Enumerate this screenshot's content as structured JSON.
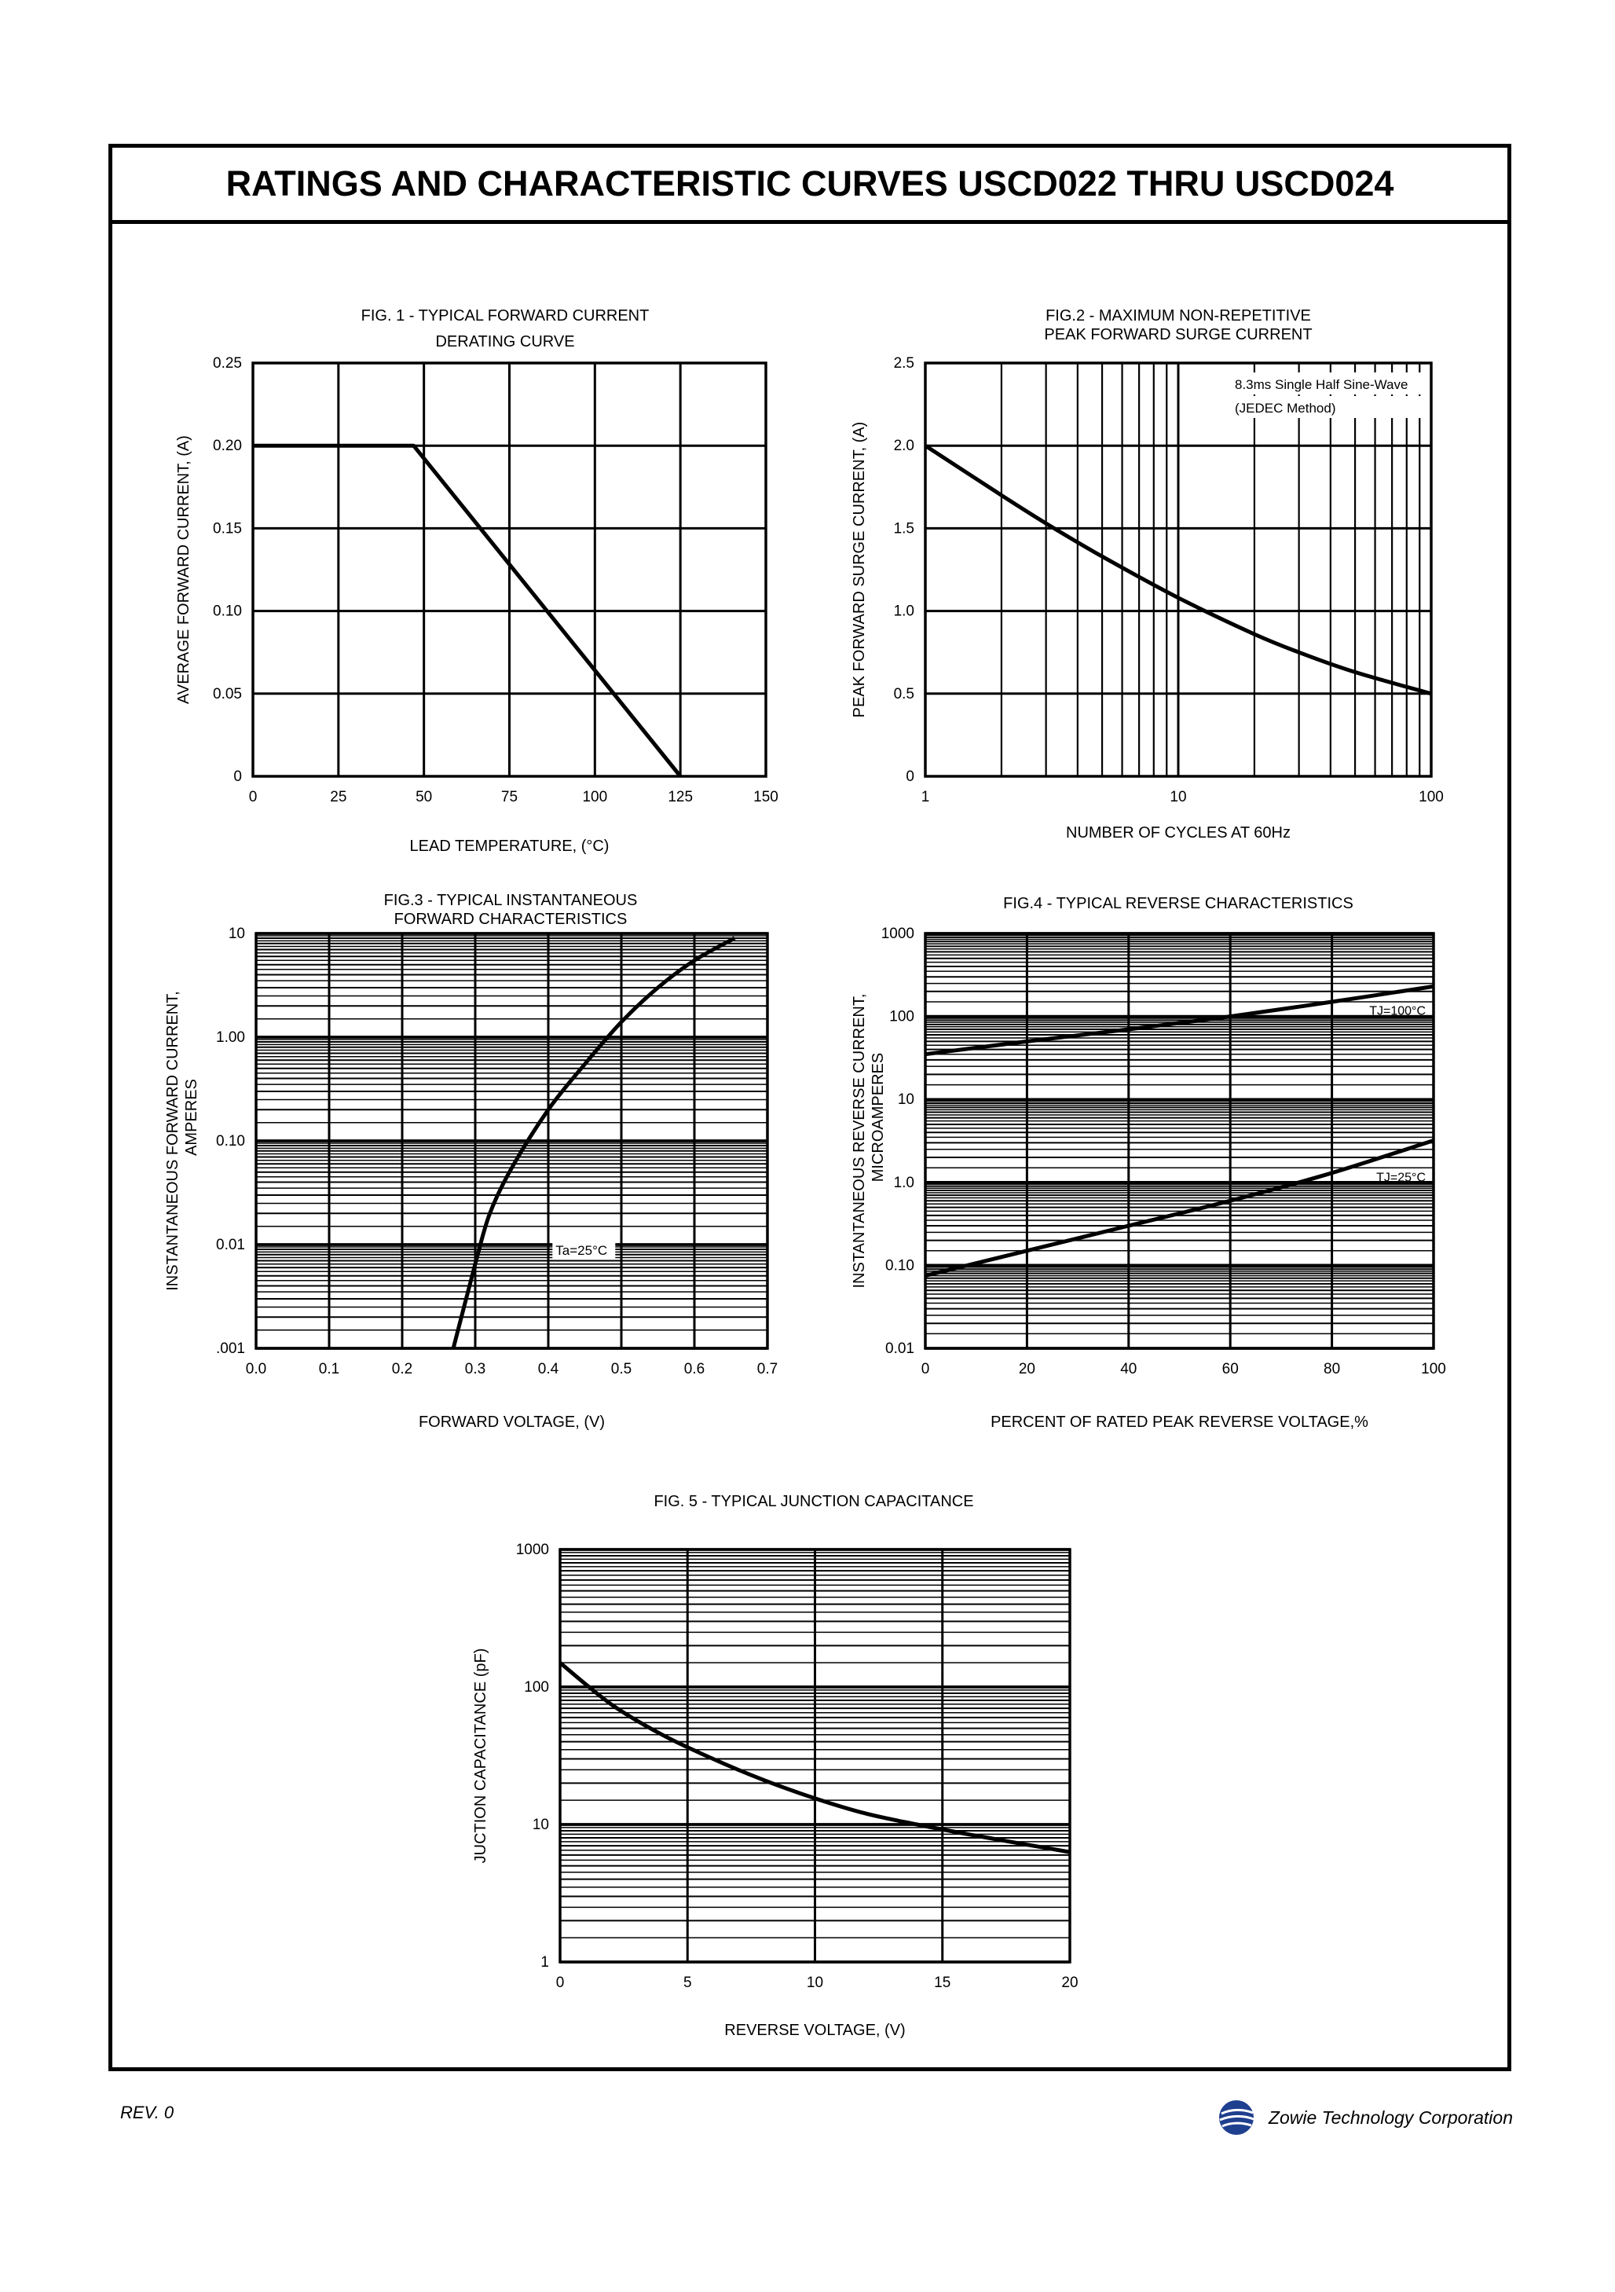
{
  "page": {
    "title": "RATINGS AND CHARACTERISTIC CURVES USCD022 THRU USCD024",
    "footer_left": "REV. 0",
    "footer_right": "Zowie Technology Corporation",
    "logo_icon": "zowie-globe-logo",
    "accent_color": "#1f3f8f"
  },
  "chart_data": [
    {
      "id": "fig1",
      "type": "line",
      "title": "FIG. 1  - TYPICAL FORWARD CURRENT",
      "subtitle": "DERATING CURVE",
      "xlabel": "LEAD  TEMPERATURE, (°C)",
      "ylabel": "AVERAGE FORWARD CURRENT, (A)",
      "xlim": [
        0,
        150
      ],
      "ylim": [
        0,
        0.25
      ],
      "xscale": "linear",
      "yscale": "linear",
      "grid": true,
      "xticks": [
        "0",
        "25",
        "50",
        "75",
        "100",
        "125",
        "150"
      ],
      "yticks": [
        "0",
        "0.05",
        "0.10",
        "0.15",
        "0.20",
        "0.25"
      ],
      "series": [
        {
          "x": [
            0,
            47,
            125
          ],
          "y": [
            0.2,
            0.2,
            0
          ]
        }
      ]
    },
    {
      "id": "fig2",
      "type": "line",
      "title": "FIG.2 - MAXIMUM NON-REPETITIVE",
      "subtitle": "PEAK FORWARD SURGE CURRENT",
      "xlabel": "NUMBER OF CYCLES AT 60Hz",
      "ylabel": "PEAK FORWARD SURGE CURRENT, (A)",
      "xlim": [
        1,
        100
      ],
      "ylim": [
        0,
        2.5
      ],
      "xscale": "log",
      "yscale": "linear",
      "grid": true,
      "xticks": [
        "1",
        "10",
        "100"
      ],
      "yticks": [
        "0",
        "0.5",
        "1.0",
        "1.5",
        "2.0",
        "2.5"
      ],
      "annotations": [
        "8.3ms Single Half Sine-Wave",
        "(JEDEC Method)"
      ],
      "series": [
        {
          "x": [
            1,
            2,
            3,
            5,
            10,
            20,
            30,
            50,
            100
          ],
          "y": [
            2.0,
            1.7,
            1.53,
            1.33,
            1.08,
            0.86,
            0.75,
            0.63,
            0.5
          ]
        }
      ]
    },
    {
      "id": "fig3",
      "type": "line",
      "title": "FIG.3 - TYPICAL INSTANTANEOUS",
      "subtitle": "FORWARD CHARACTERISTICS",
      "xlabel": "FORWARD  VOLTAGE, (V)",
      "ylabel": "INSTANTANEOUS FORWARD CURRENT,",
      "ylabel2": "AMPERES",
      "xlim": [
        0,
        0.7
      ],
      "ylim": [
        0.001,
        10
      ],
      "xscale": "linear",
      "yscale": "log",
      "grid": true,
      "xticks": [
        "0.0",
        "0.1",
        "0.2",
        "0.3",
        "0.4",
        "0.5",
        "0.6",
        "0.7"
      ],
      "yticks": [
        ".001",
        "0.01",
        "0.10",
        "1.00",
        "10"
      ],
      "annotations": [
        "Ta=25°C"
      ],
      "series": [
        {
          "x": [
            0.27,
            0.3,
            0.32,
            0.35,
            0.4,
            0.45,
            0.5,
            0.55,
            0.6,
            0.655
          ],
          "y": [
            0.001,
            0.0065,
            0.02,
            0.055,
            0.2,
            0.55,
            1.4,
            3.0,
            5.5,
            9.0
          ]
        }
      ]
    },
    {
      "id": "fig4",
      "type": "line",
      "title": "FIG.4 - TYPICAL REVERSE CHARACTERISTICS",
      "xlabel": "PERCENT OF RATED PEAK REVERSE VOLTAGE,%",
      "ylabel": "INSTANTANEOUS REVERSE CURRENT,",
      "ylabel2": "MICROAMPERES",
      "xlim": [
        0,
        100
      ],
      "ylim": [
        0.01,
        1000
      ],
      "xscale": "linear",
      "yscale": "log",
      "grid": true,
      "xticks": [
        "0",
        "20",
        "40",
        "60",
        "80",
        "100"
      ],
      "yticks": [
        "0.01",
        "0.10",
        "1.0",
        "10",
        "100",
        "1000"
      ],
      "series": [
        {
          "name": "TJ=100°C",
          "x": [
            0,
            20,
            40,
            60,
            80,
            100
          ],
          "y": [
            35,
            50,
            70,
            100,
            150,
            230
          ]
        },
        {
          "name": "TJ=25°C",
          "x": [
            0,
            20,
            40,
            60,
            80,
            100
          ],
          "y": [
            0.075,
            0.15,
            0.3,
            0.6,
            1.3,
            3.2
          ]
        }
      ]
    },
    {
      "id": "fig5",
      "type": "line",
      "title": "FIG. 5 - TYPICAL JUNCTION CAPACITANCE",
      "xlabel": "REVERSE  VOLTAGE, (V)",
      "ylabel": "JUCTION CAPACITANCE  (pF)",
      "xlim": [
        0,
        20
      ],
      "ylim": [
        1,
        1000
      ],
      "xscale": "linear",
      "yscale": "log",
      "grid": true,
      "xticks": [
        "0",
        "5",
        "10",
        "15",
        "20"
      ],
      "yticks": [
        "1",
        "10",
        "100",
        "1000"
      ],
      "series": [
        {
          "x": [
            0,
            2,
            4,
            6,
            8,
            10,
            12,
            14,
            16,
            18,
            20
          ],
          "y": [
            150,
            75,
            45,
            30,
            21,
            15.5,
            12,
            10,
            8.5,
            7.3,
            6.3
          ]
        }
      ]
    }
  ]
}
